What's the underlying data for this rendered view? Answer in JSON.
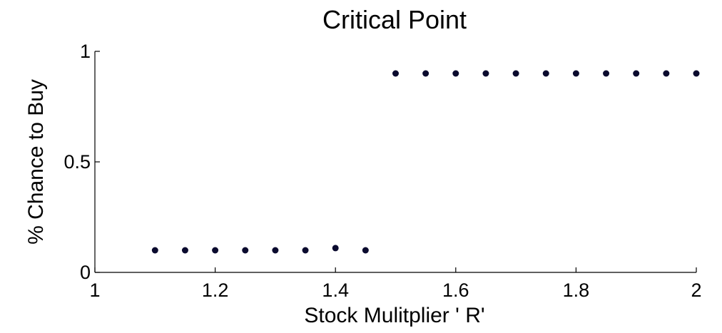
{
  "chart_data": {
    "type": "scatter",
    "title": "Critical Point",
    "xlabel": "Stock Mulitplier ' R'",
    "ylabel": "% Chance to Buy",
    "xlim": [
      1,
      2
    ],
    "ylim": [
      0,
      1
    ],
    "xticks": [
      1,
      1.2,
      1.4,
      1.6,
      1.8,
      2
    ],
    "xtick_labels": [
      "1",
      "1.2",
      "1.4",
      "1.6",
      "1.8",
      "2"
    ],
    "yticks": [
      0,
      0.5,
      1
    ],
    "ytick_labels": [
      "0",
      "0.5",
      "1"
    ],
    "grid": false,
    "marker_color": "#0a0a2e",
    "series": [
      {
        "x": [
          1.1,
          1.15,
          1.2,
          1.25,
          1.3,
          1.35,
          1.4,
          1.45,
          1.5,
          1.55,
          1.6,
          1.65,
          1.7,
          1.75,
          1.8,
          1.85,
          1.9,
          1.95,
          2.0
        ],
        "y": [
          0.1,
          0.1,
          0.1,
          0.1,
          0.1,
          0.1,
          0.11,
          0.1,
          0.9,
          0.9,
          0.9,
          0.9,
          0.9,
          0.9,
          0.9,
          0.9,
          0.9,
          0.9,
          0.9
        ]
      }
    ]
  }
}
